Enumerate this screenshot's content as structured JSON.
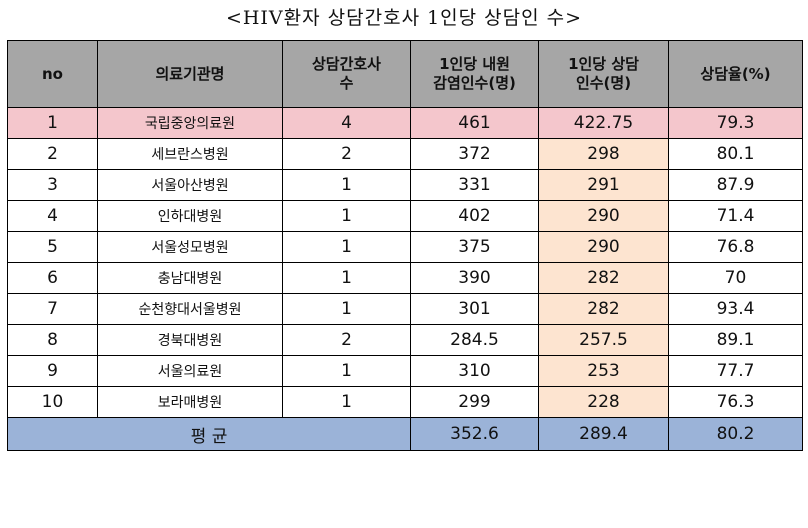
{
  "title": "<HIV환자 상담간호사 1인당 상담인 수>",
  "headers": {
    "no": "no",
    "institution": "의료기관명",
    "nurses_line1": "상담간호사",
    "nurses_line2": "수",
    "patients_line1": "1인당 내원",
    "patients_line2": "감염인수(명)",
    "counsel_line1": "1인당 상담",
    "counsel_line2": "인수(명)",
    "rate": "상담율(%)"
  },
  "rows": [
    {
      "no": "1",
      "name": "국립중앙의료원",
      "nurses": "4",
      "patients": "461",
      "counsel": "422.75",
      "rate": "79.3"
    },
    {
      "no": "2",
      "name": "세브란스병원",
      "nurses": "2",
      "patients": "372",
      "counsel": "298",
      "rate": "80.1"
    },
    {
      "no": "3",
      "name": "서울아산병원",
      "nurses": "1",
      "patients": "331",
      "counsel": "291",
      "rate": "87.9"
    },
    {
      "no": "4",
      "name": "인하대병원",
      "nurses": "1",
      "patients": "402",
      "counsel": "290",
      "rate": "71.4"
    },
    {
      "no": "5",
      "name": "서울성모병원",
      "nurses": "1",
      "patients": "375",
      "counsel": "290",
      "rate": "76.8"
    },
    {
      "no": "6",
      "name": "충남대병원",
      "nurses": "1",
      "patients": "390",
      "counsel": "282",
      "rate": "70"
    },
    {
      "no": "7",
      "name": "순천향대서울병원",
      "nurses": "1",
      "patients": "301",
      "counsel": "282",
      "rate": "93.4"
    },
    {
      "no": "8",
      "name": "경북대병원",
      "nurses": "2",
      "patients": "284.5",
      "counsel": "257.5",
      "rate": "89.1"
    },
    {
      "no": "9",
      "name": "서울의료원",
      "nurses": "1",
      "patients": "310",
      "counsel": "253",
      "rate": "77.7"
    },
    {
      "no": "10",
      "name": "보라매병원",
      "nurses": "1",
      "patients": "299",
      "counsel": "228",
      "rate": "76.3"
    }
  ],
  "average": {
    "label": "평 균",
    "patients": "352.6",
    "counsel": "289.4",
    "rate": "80.2"
  },
  "colors": {
    "header_bg": "#a6a6a6",
    "highlight_row_bg": "#f4c6cc",
    "counsel_cell_bg": "#fde4d0",
    "average_row_bg": "#9bb3d8"
  }
}
